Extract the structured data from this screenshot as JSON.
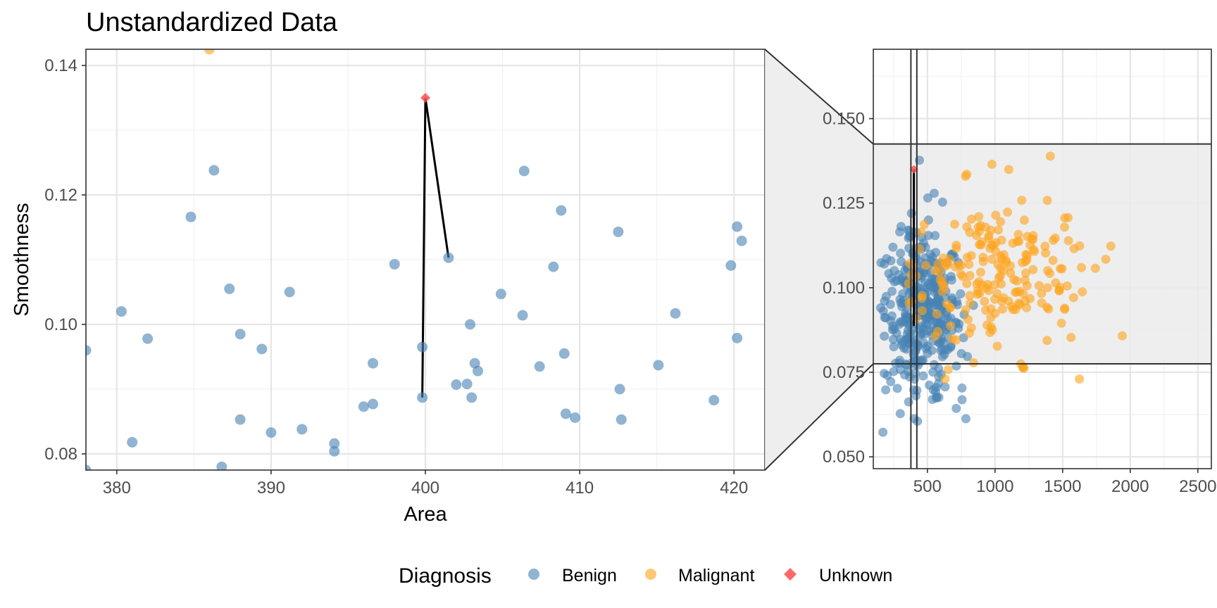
{
  "chart_data": {
    "type": "scatter",
    "title": "Unstandardized Data",
    "legend": {
      "title": "Diagnosis",
      "position": "bottom",
      "entries": [
        {
          "label": "Benign",
          "color": "#4682b4",
          "shape": "circle"
        },
        {
          "label": "Malignant",
          "color": "#ffa31a",
          "shape": "circle"
        },
        {
          "label": "Unknown",
          "color": "#ff4d4d",
          "shape": "diamond"
        }
      ]
    },
    "zoom_panel": {
      "xlabel": "Area",
      "ylabel": "Smoothness",
      "xlim": [
        378,
        422
      ],
      "ylim": [
        0.0775,
        0.1425
      ],
      "xticks": [
        380,
        390,
        400,
        410,
        420
      ],
      "yticks": [
        0.08,
        0.1,
        0.12,
        0.14
      ],
      "ytick_labels": [
        "0.08",
        "0.10",
        "0.12",
        "0.14"
      ],
      "grid": true,
      "unknown_point": {
        "x": 400,
        "y": 0.135
      },
      "neighbor_lines": [
        {
          "x": 399.8,
          "y": 0.0887
        },
        {
          "x": 401.5,
          "y": 0.1103
        }
      ],
      "benign": [
        [
          378.0,
          0.096
        ],
        [
          378.0,
          0.0775
        ],
        [
          380.3,
          0.102
        ],
        [
          381.0,
          0.0818
        ],
        [
          382.0,
          0.0978
        ],
        [
          384.8,
          0.1166
        ],
        [
          386.3,
          0.1238
        ],
        [
          387.3,
          0.1055
        ],
        [
          388.0,
          0.0985
        ],
        [
          388.0,
          0.0853
        ],
        [
          386.8,
          0.078
        ],
        [
          389.4,
          0.0962
        ],
        [
          390.0,
          0.0833
        ],
        [
          391.2,
          0.105
        ],
        [
          392.0,
          0.0838
        ],
        [
          394.1,
          0.0816
        ],
        [
          394.1,
          0.0804
        ],
        [
          396.0,
          0.0873
        ],
        [
          396.6,
          0.0877
        ],
        [
          396.6,
          0.094
        ],
        [
          398.0,
          0.1093
        ],
        [
          399.8,
          0.0965
        ],
        [
          399.8,
          0.0887
        ],
        [
          401.5,
          0.1103
        ],
        [
          402.0,
          0.0907
        ],
        [
          402.7,
          0.0908
        ],
        [
          402.9,
          0.1
        ],
        [
          403.0,
          0.0887
        ],
        [
          403.2,
          0.094
        ],
        [
          403.4,
          0.0928
        ],
        [
          404.9,
          0.1047
        ],
        [
          406.3,
          0.1014
        ],
        [
          406.4,
          0.1237
        ],
        [
          407.4,
          0.0935
        ],
        [
          408.3,
          0.1089
        ],
        [
          408.8,
          0.1176
        ],
        [
          409.0,
          0.0955
        ],
        [
          409.1,
          0.0862
        ],
        [
          409.7,
          0.0856
        ],
        [
          412.5,
          0.1143
        ],
        [
          412.6,
          0.09
        ],
        [
          412.7,
          0.0853
        ],
        [
          415.1,
          0.0937
        ],
        [
          416.2,
          0.1017
        ],
        [
          418.7,
          0.0883
        ],
        [
          419.8,
          0.1091
        ],
        [
          420.2,
          0.0979
        ],
        [
          420.2,
          0.1151
        ],
        [
          420.5,
          0.1129
        ]
      ],
      "malignant": [
        [
          386.0,
          0.1425
        ]
      ]
    },
    "overview_panel": {
      "xlim": [
        100,
        2600
      ],
      "ylim": [
        0.0465,
        0.1705
      ],
      "xticks": [
        500,
        1000,
        1500,
        2000,
        2500
      ],
      "yticks": [
        0.05,
        0.075,
        0.1,
        0.125,
        0.15
      ],
      "ytick_labels": [
        "0.050",
        "0.075",
        "0.100",
        "0.125",
        "0.150"
      ],
      "grid": true,
      "zoom_box": {
        "x": [
          378,
          422
        ],
        "y": [
          0.0775,
          0.1425
        ]
      },
      "n_benign": 357,
      "n_malignant": 212
    }
  }
}
